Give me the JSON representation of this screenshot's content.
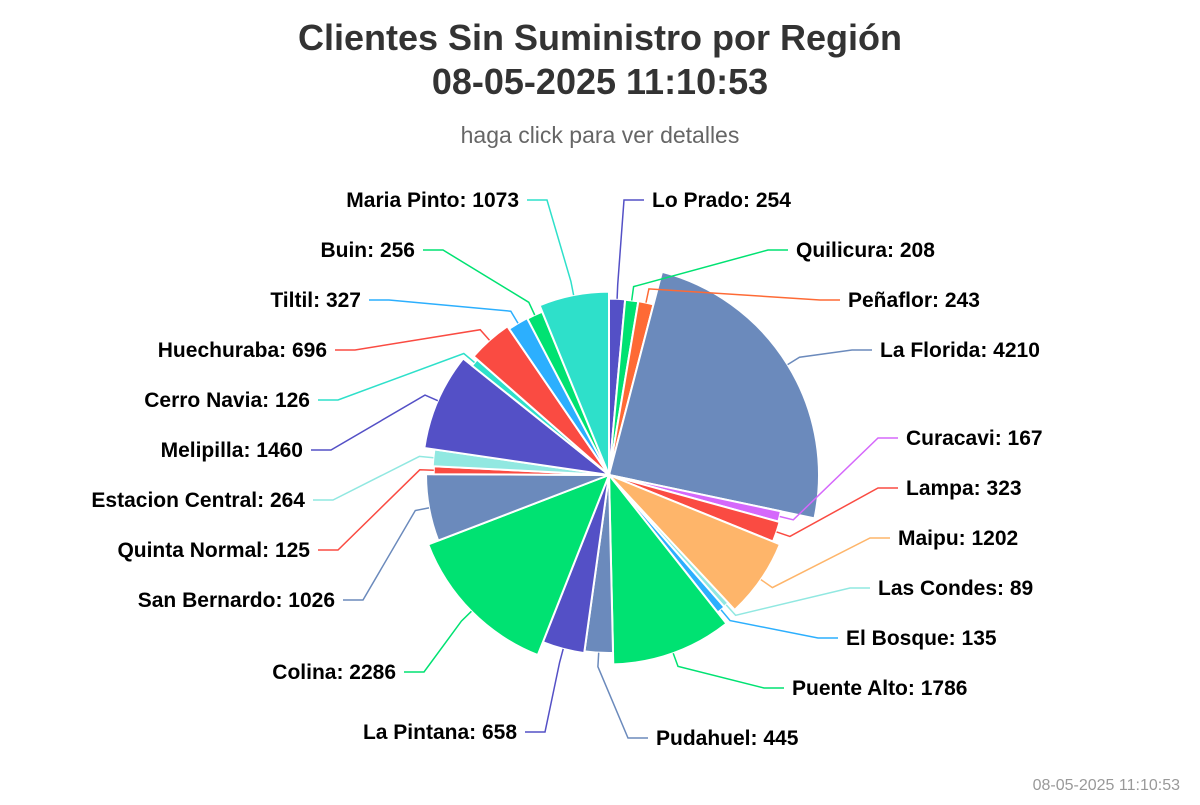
{
  "chart_data": {
    "type": "pie",
    "title": "Clientes Sin Suministro por Región",
    "title_line2": "08-05-2025 11:10:53",
    "subtitle": "haga click para ver detalles",
    "footer": "08-05-2025 11:10:53",
    "slices": [
      {
        "name": "Lo Prado",
        "value": 254,
        "color": "#5450c6"
      },
      {
        "name": "Quilicura",
        "value": 208,
        "color": "#00e272"
      },
      {
        "name": "Peñaflor",
        "value": 243,
        "color": "#fe6a35"
      },
      {
        "name": "La Florida",
        "value": 4210,
        "color": "#6b8abc"
      },
      {
        "name": "Curacavi",
        "value": 167,
        "color": "#d568fb"
      },
      {
        "name": "Lampa",
        "value": 323,
        "color": "#fa4b42"
      },
      {
        "name": "Maipu",
        "value": 1202,
        "color": "#feb56a"
      },
      {
        "name": "Las Condes",
        "value": 89,
        "color": "#91e8e1"
      },
      {
        "name": "El Bosque",
        "value": 135,
        "color": "#2caffe"
      },
      {
        "name": "Puente Alto",
        "value": 1786,
        "color": "#00e272"
      },
      {
        "name": "Pudahuel",
        "value": 445,
        "color": "#6b8abc"
      },
      {
        "name": "La Pintana",
        "value": 658,
        "color": "#5450c6"
      },
      {
        "name": "Colina",
        "value": 2286,
        "color": "#00e272"
      },
      {
        "name": "San Bernardo",
        "value": 1026,
        "color": "#6b8abc"
      },
      {
        "name": "Quinta Normal",
        "value": 125,
        "color": "#fa4b42"
      },
      {
        "name": "Estacion Central",
        "value": 264,
        "color": "#91e8e1"
      },
      {
        "name": "Melipilla",
        "value": 1460,
        "color": "#5450c6"
      },
      {
        "name": "Cerro Navia",
        "value": 126,
        "color": "#2ee0ca"
      },
      {
        "name": "Huechuraba",
        "value": 696,
        "color": "#fa4b42"
      },
      {
        "name": "Tiltil",
        "value": 327,
        "color": "#2caffe"
      },
      {
        "name": "Buin",
        "value": 256,
        "color": "#00e272"
      },
      {
        "name": "Maria Pinto",
        "value": 1073,
        "color": "#2ee0ca"
      }
    ]
  }
}
